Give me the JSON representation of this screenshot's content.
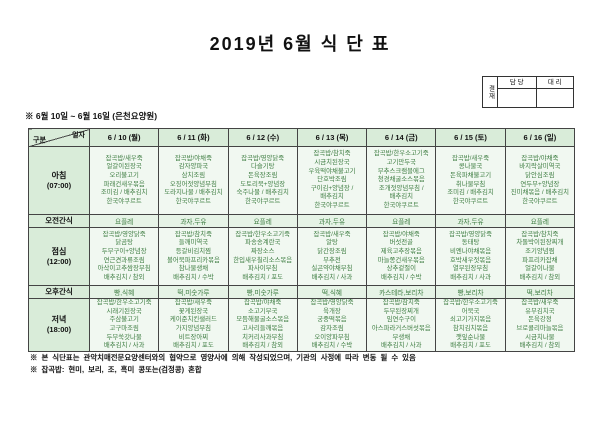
{
  "title": "2019년 6월 식 단 표",
  "approval": {
    "stamp": "결재",
    "col1": "담 당",
    "col2": "대 리"
  },
  "subtitle": "※ 6월 10일 ~ 6월 16일 (은천요양원)",
  "colors": {
    "header_green": "#d9ecd9",
    "cell_pale_green": "#f1f8f1",
    "menu_text_green": "#3e7d42",
    "border": "#444444"
  },
  "table": {
    "corner": {
      "top": "일자",
      "bottom": "구분"
    },
    "columns": [
      "6 / 10 (월)",
      "6 / 11 (화)",
      "6 / 12 (수)",
      "6 / 13 (목)",
      "6 / 14 (금)",
      "6 / 15 (토)",
      "6 / 16 (일)"
    ],
    "rows": [
      {
        "key": "breakfast",
        "label": "아침",
        "time": "(07:00)",
        "type": "meal",
        "cells": [
          [
            "잡곡밥/새우죽",
            "얼갈이된장국",
            "오리불고기",
            "파래건새우볶음",
            "조미김 / 배추김치",
            "한국야쿠르트"
          ],
          [
            "잡곡밥/야채죽",
            "감자양파국",
            "삼치조림",
            "오징어젓양념무침",
            "도라지나물 / 배추김치",
            "한국야쿠르트"
          ],
          [
            "잡곡밥/영양닭죽",
            "다슬기탕",
            "돈육장조림",
            "도토리묵+양념장",
            "숙주나물 / 배추김치",
            "한국야쿠르트"
          ],
          [
            "잡곡밥/참치죽",
            "시금치된장국",
            "우육떡야채불고기",
            "단호박조림",
            "구이김+양념장 /",
            "배추김치",
            "한국야쿠르트"
          ],
          [
            "잡곡밥/한우소고기죽",
            "고기만두국",
            "부추스크램블에그",
            "청경채굴소스볶음",
            "조개젓양념무침 /",
            "배추김치",
            "한국야쿠르트"
          ],
          [
            "잡곡밥/새우죽",
            "콩나물국",
            "돈육파채불고기",
            "취나물무침",
            "조미김 / 배추김치",
            "한국야쿠르트"
          ],
          [
            "잡곡밥/야채죽",
            "바지락살미역국",
            "닭안심조림",
            "연두부+양념장",
            "진미채볶음 / 배추김치",
            "한국야쿠르트"
          ]
        ]
      },
      {
        "key": "am-snack",
        "label": "오전간식",
        "type": "snack",
        "cells": [
          "요플레",
          "과자,두유",
          "요플레",
          "과자,두유",
          "요플레",
          "과자,두유",
          "요플레"
        ]
      },
      {
        "key": "lunch",
        "label": "점심",
        "time": "(12:00)",
        "type": "meal",
        "cells": [
          [
            "잡곡밥/영양닭죽",
            "닭곰탕",
            "두부구이+양념장",
            "연근견과류조림",
            "아삭이고추쌈장무침",
            "배추김치 / 참외"
          ],
          [
            "잡곡밥/참치죽",
            "들깨미역국",
            "등갈비김치찜",
            "볼어묵파프리카볶음",
            "참나물생채",
            "배추김치 / 수박"
          ],
          [
            "잡곡밥/한우소고기죽",
            "파송송계란국",
            "짜장소스",
            "한입새우칠리소스볶음",
            "파사이무침",
            "배추김치 / 포도"
          ],
          [
            "잡곡밥/새우죽",
            "알탕",
            "닭간장조림",
            "부추전",
            "실곤약야채무침",
            "배추김치 / 사과"
          ],
          [
            "잡곡밥/야채죽",
            "버섯전골",
            "제육고추장볶음",
            "마늘쫑건새우볶음",
            "상추겉절이",
            "배추김치 / 수박"
          ],
          [
            "잡곡밥/영양닭죽",
            "동태탕",
            "비엔나야채볶음",
            "호박새우젓볶음",
            "열무된장무침",
            "배추김치 / 사과"
          ],
          [
            "잡곡밥/참치죽",
            "차돌박이된장찌개",
            "조기양념찜",
            "파프리카잡채",
            "얼갈이나물",
            "배추김치 / 참외"
          ]
        ]
      },
      {
        "key": "pm-snack",
        "label": "오후간식",
        "type": "snack",
        "cells": [
          "빵,식혜",
          "떡,미숫가루",
          "빵,미숫가루",
          "떡,식혜",
          "카스테라,보리차",
          "빵,보리차",
          "떡,보리차"
        ]
      },
      {
        "key": "dinner",
        "label": "저녁",
        "time": "(18:00)",
        "type": "meal",
        "cells": [
          [
            "잡곡밥/한우소고기죽",
            "시래기된장국",
            "주삼불고기",
            "고구마조림",
            "두부쑥갓나물",
            "배추김치 / 사과"
          ],
          [
            "잡곡밥/새우죽",
            "꽃게된장국",
            "케이준치킨샐러드",
            "가지양념무침",
            "비트장아찌",
            "배추김치 / 포도"
          ],
          [
            "잡곡밥/야채죽",
            "소고기무국",
            "모듬해물굴소스볶음",
            "고사리들깨볶음",
            "치커리사과무침",
            "배추김치 / 참외"
          ],
          [
            "잡곡밥/영양닭죽",
            "육개장",
            "궁중떡볶음",
            "감자조림",
            "오이양파무침",
            "배추김치 / 수박"
          ],
          [
            "잡곡밥/참치죽",
            "두부된장찌개",
            "임연수구이",
            "아스파라거스버섯볶음",
            "무생채",
            "배추김치 / 사과"
          ],
          [
            "잡곡밥/한우소고기죽",
            "어묵국",
            "쇠고기가지볶음",
            "참치김치볶음",
            "깻잎순나물",
            "배추김치 / 포도"
          ],
          [
            "잡곡밥/새우죽",
            "유부김치국",
            "돈육강정",
            "브로콜리마늘볶음",
            "시금치나물",
            "배추김치 / 참외"
          ]
        ]
      }
    ]
  },
  "notes": [
    "※ 본 식단표는 관악치매전문요양센터와의 협약으로 영양사에 의해 작성되었으며, 기관의 사정에 따라 변동 될 수 있음",
    "※ 잡곡밥: 현미, 보리, 조, 흑미 콩또는(검정콩) 혼합"
  ]
}
